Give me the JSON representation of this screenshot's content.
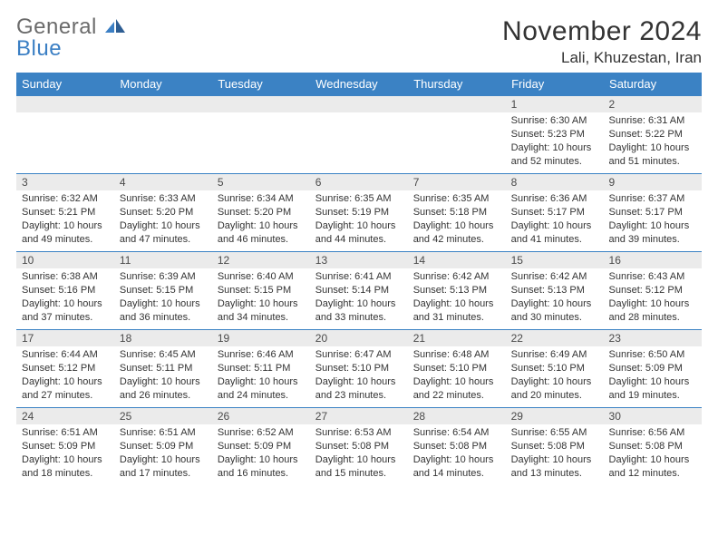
{
  "logo": {
    "general": "General",
    "blue": "Blue"
  },
  "title": "November 2024",
  "location": "Lali, Khuzestan, Iran",
  "colors": {
    "header_bg": "#3b82c4",
    "header_text": "#ffffff",
    "daynum_bg": "#ebebeb",
    "border": "#3b82c4",
    "logo_gray": "#6b6b6b",
    "logo_blue": "#3b7fc4"
  },
  "weekdays": [
    "Sunday",
    "Monday",
    "Tuesday",
    "Wednesday",
    "Thursday",
    "Friday",
    "Saturday"
  ],
  "weeks": [
    [
      {
        "n": "",
        "sr": "",
        "ss": "",
        "dl": ""
      },
      {
        "n": "",
        "sr": "",
        "ss": "",
        "dl": ""
      },
      {
        "n": "",
        "sr": "",
        "ss": "",
        "dl": ""
      },
      {
        "n": "",
        "sr": "",
        "ss": "",
        "dl": ""
      },
      {
        "n": "",
        "sr": "",
        "ss": "",
        "dl": ""
      },
      {
        "n": "1",
        "sr": "Sunrise: 6:30 AM",
        "ss": "Sunset: 5:23 PM",
        "dl": "Daylight: 10 hours and 52 minutes."
      },
      {
        "n": "2",
        "sr": "Sunrise: 6:31 AM",
        "ss": "Sunset: 5:22 PM",
        "dl": "Daylight: 10 hours and 51 minutes."
      }
    ],
    [
      {
        "n": "3",
        "sr": "Sunrise: 6:32 AM",
        "ss": "Sunset: 5:21 PM",
        "dl": "Daylight: 10 hours and 49 minutes."
      },
      {
        "n": "4",
        "sr": "Sunrise: 6:33 AM",
        "ss": "Sunset: 5:20 PM",
        "dl": "Daylight: 10 hours and 47 minutes."
      },
      {
        "n": "5",
        "sr": "Sunrise: 6:34 AM",
        "ss": "Sunset: 5:20 PM",
        "dl": "Daylight: 10 hours and 46 minutes."
      },
      {
        "n": "6",
        "sr": "Sunrise: 6:35 AM",
        "ss": "Sunset: 5:19 PM",
        "dl": "Daylight: 10 hours and 44 minutes."
      },
      {
        "n": "7",
        "sr": "Sunrise: 6:35 AM",
        "ss": "Sunset: 5:18 PM",
        "dl": "Daylight: 10 hours and 42 minutes."
      },
      {
        "n": "8",
        "sr": "Sunrise: 6:36 AM",
        "ss": "Sunset: 5:17 PM",
        "dl": "Daylight: 10 hours and 41 minutes."
      },
      {
        "n": "9",
        "sr": "Sunrise: 6:37 AM",
        "ss": "Sunset: 5:17 PM",
        "dl": "Daylight: 10 hours and 39 minutes."
      }
    ],
    [
      {
        "n": "10",
        "sr": "Sunrise: 6:38 AM",
        "ss": "Sunset: 5:16 PM",
        "dl": "Daylight: 10 hours and 37 minutes."
      },
      {
        "n": "11",
        "sr": "Sunrise: 6:39 AM",
        "ss": "Sunset: 5:15 PM",
        "dl": "Daylight: 10 hours and 36 minutes."
      },
      {
        "n": "12",
        "sr": "Sunrise: 6:40 AM",
        "ss": "Sunset: 5:15 PM",
        "dl": "Daylight: 10 hours and 34 minutes."
      },
      {
        "n": "13",
        "sr": "Sunrise: 6:41 AM",
        "ss": "Sunset: 5:14 PM",
        "dl": "Daylight: 10 hours and 33 minutes."
      },
      {
        "n": "14",
        "sr": "Sunrise: 6:42 AM",
        "ss": "Sunset: 5:13 PM",
        "dl": "Daylight: 10 hours and 31 minutes."
      },
      {
        "n": "15",
        "sr": "Sunrise: 6:42 AM",
        "ss": "Sunset: 5:13 PM",
        "dl": "Daylight: 10 hours and 30 minutes."
      },
      {
        "n": "16",
        "sr": "Sunrise: 6:43 AM",
        "ss": "Sunset: 5:12 PM",
        "dl": "Daylight: 10 hours and 28 minutes."
      }
    ],
    [
      {
        "n": "17",
        "sr": "Sunrise: 6:44 AM",
        "ss": "Sunset: 5:12 PM",
        "dl": "Daylight: 10 hours and 27 minutes."
      },
      {
        "n": "18",
        "sr": "Sunrise: 6:45 AM",
        "ss": "Sunset: 5:11 PM",
        "dl": "Daylight: 10 hours and 26 minutes."
      },
      {
        "n": "19",
        "sr": "Sunrise: 6:46 AM",
        "ss": "Sunset: 5:11 PM",
        "dl": "Daylight: 10 hours and 24 minutes."
      },
      {
        "n": "20",
        "sr": "Sunrise: 6:47 AM",
        "ss": "Sunset: 5:10 PM",
        "dl": "Daylight: 10 hours and 23 minutes."
      },
      {
        "n": "21",
        "sr": "Sunrise: 6:48 AM",
        "ss": "Sunset: 5:10 PM",
        "dl": "Daylight: 10 hours and 22 minutes."
      },
      {
        "n": "22",
        "sr": "Sunrise: 6:49 AM",
        "ss": "Sunset: 5:10 PM",
        "dl": "Daylight: 10 hours and 20 minutes."
      },
      {
        "n": "23",
        "sr": "Sunrise: 6:50 AM",
        "ss": "Sunset: 5:09 PM",
        "dl": "Daylight: 10 hours and 19 minutes."
      }
    ],
    [
      {
        "n": "24",
        "sr": "Sunrise: 6:51 AM",
        "ss": "Sunset: 5:09 PM",
        "dl": "Daylight: 10 hours and 18 minutes."
      },
      {
        "n": "25",
        "sr": "Sunrise: 6:51 AM",
        "ss": "Sunset: 5:09 PM",
        "dl": "Daylight: 10 hours and 17 minutes."
      },
      {
        "n": "26",
        "sr": "Sunrise: 6:52 AM",
        "ss": "Sunset: 5:09 PM",
        "dl": "Daylight: 10 hours and 16 minutes."
      },
      {
        "n": "27",
        "sr": "Sunrise: 6:53 AM",
        "ss": "Sunset: 5:08 PM",
        "dl": "Daylight: 10 hours and 15 minutes."
      },
      {
        "n": "28",
        "sr": "Sunrise: 6:54 AM",
        "ss": "Sunset: 5:08 PM",
        "dl": "Daylight: 10 hours and 14 minutes."
      },
      {
        "n": "29",
        "sr": "Sunrise: 6:55 AM",
        "ss": "Sunset: 5:08 PM",
        "dl": "Daylight: 10 hours and 13 minutes."
      },
      {
        "n": "30",
        "sr": "Sunrise: 6:56 AM",
        "ss": "Sunset: 5:08 PM",
        "dl": "Daylight: 10 hours and 12 minutes."
      }
    ]
  ]
}
